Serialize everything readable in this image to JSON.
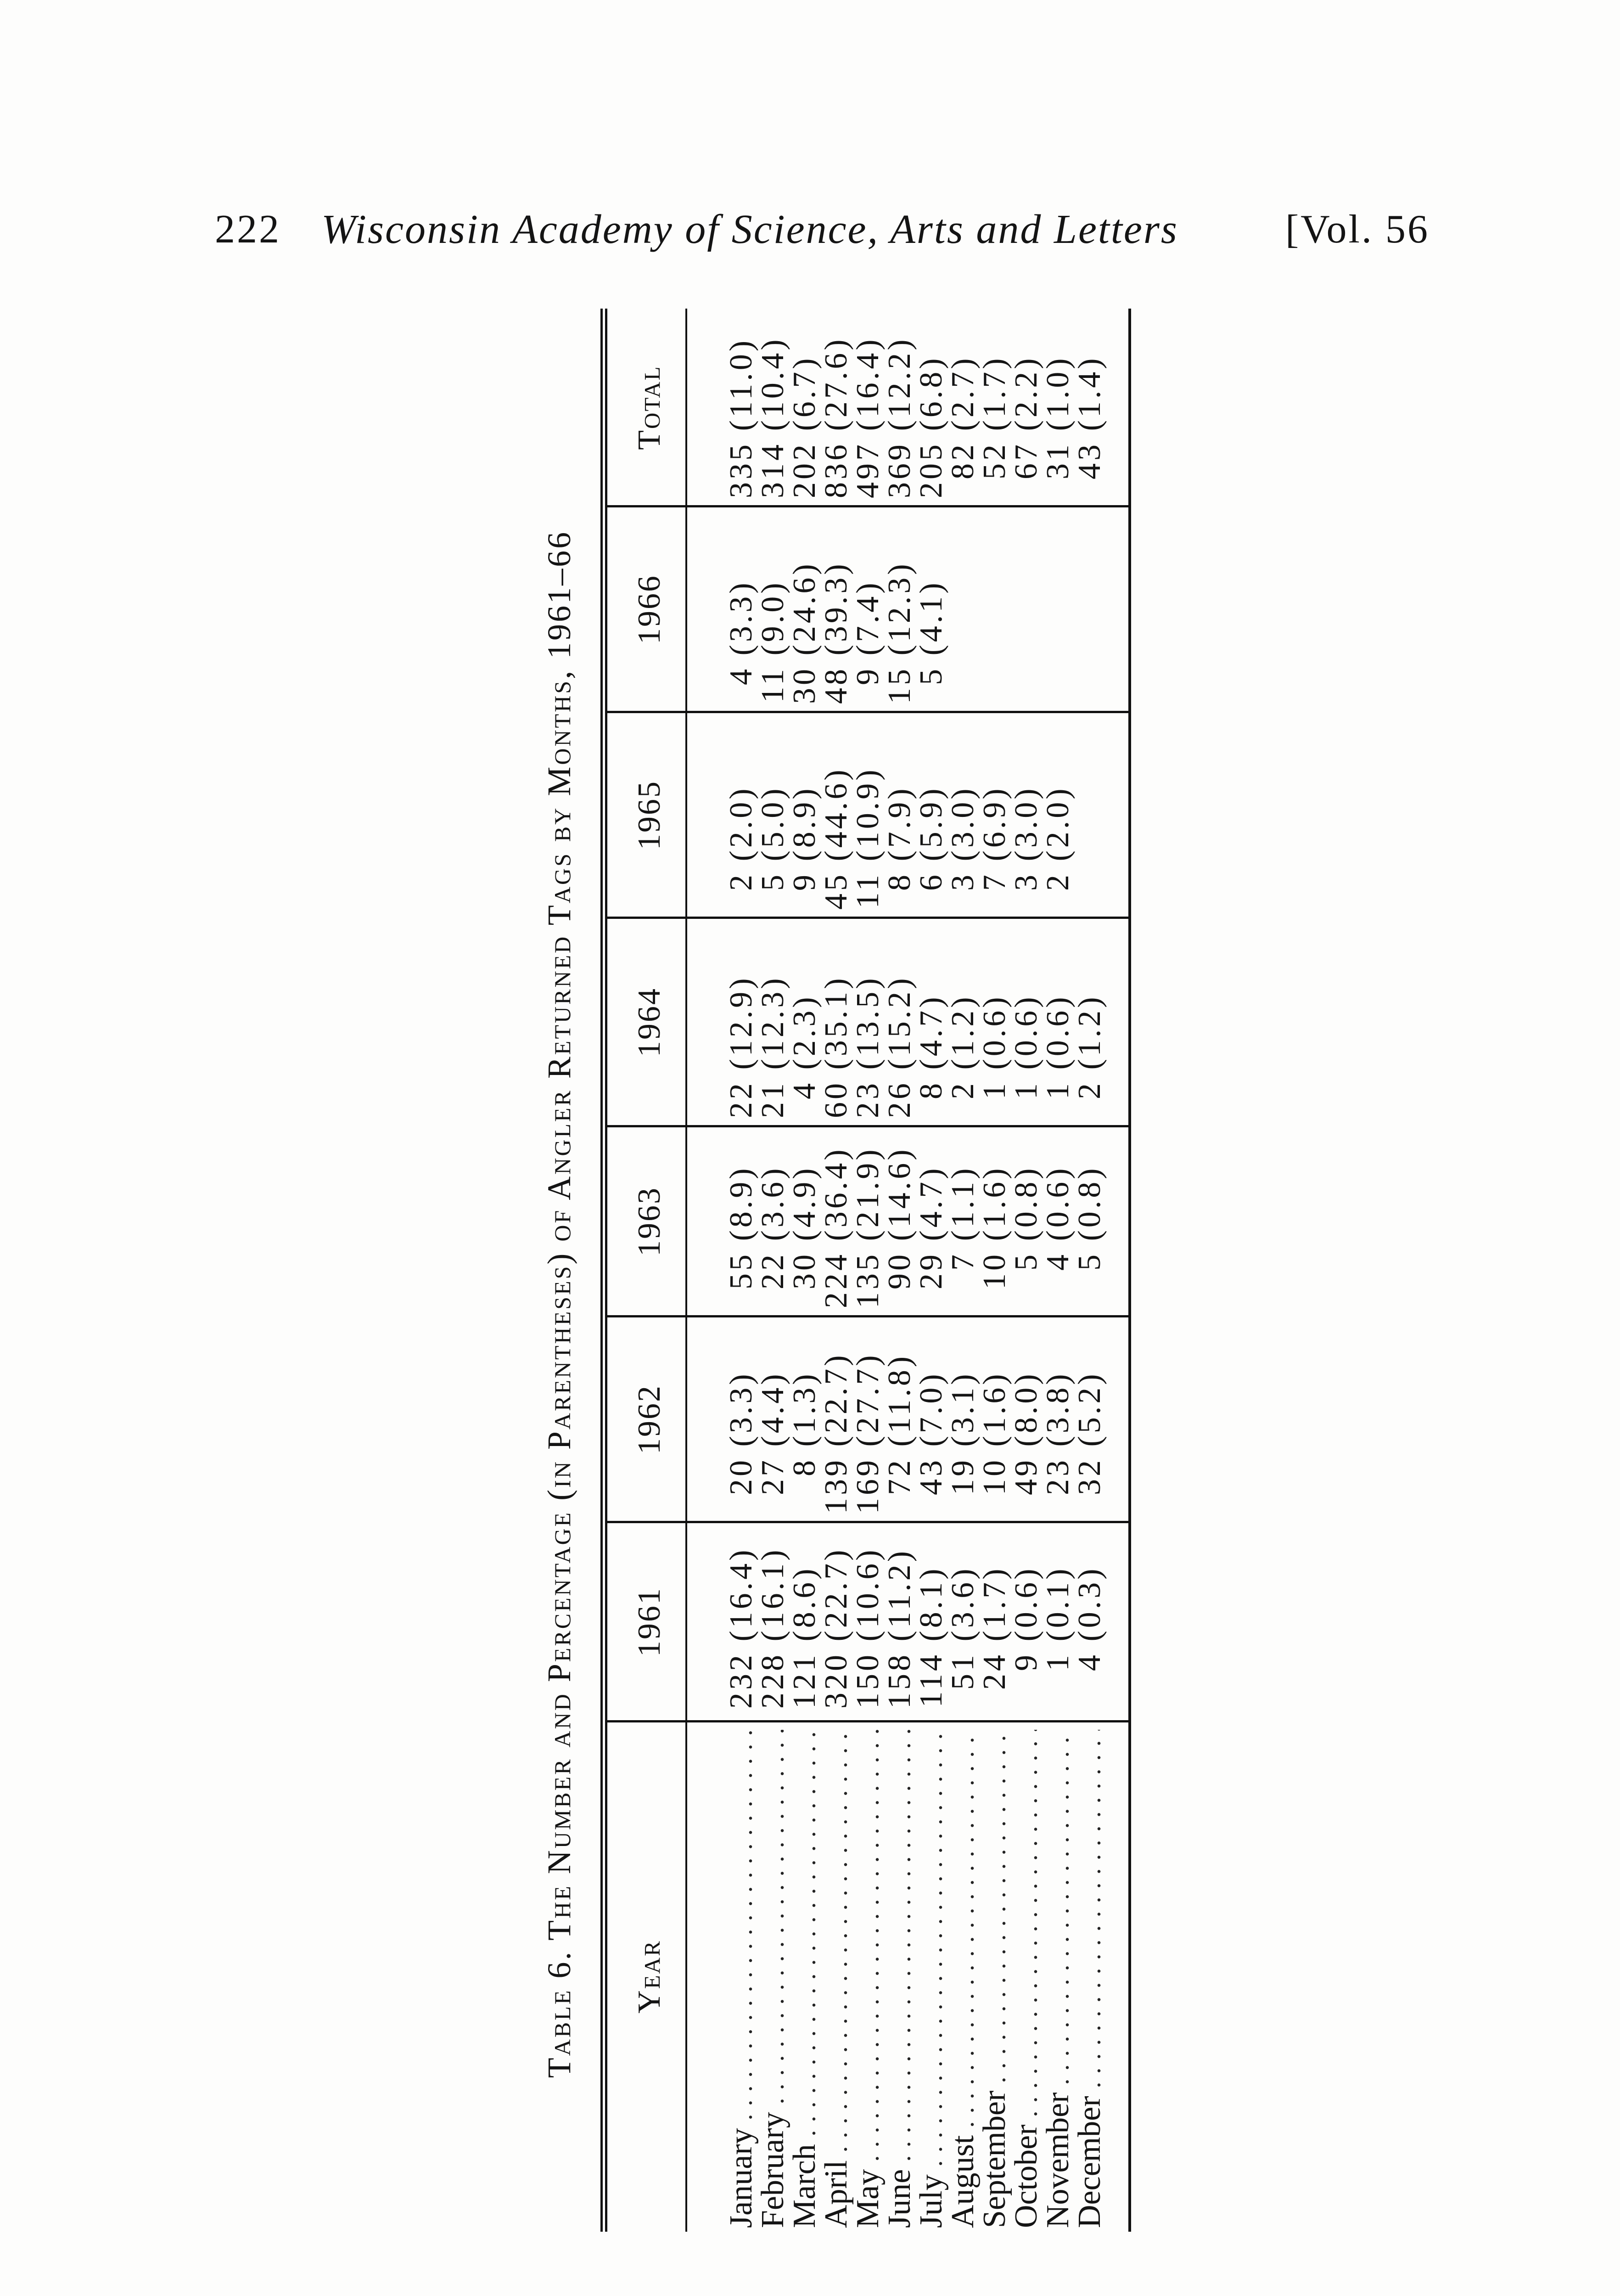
{
  "page_header": {
    "page_number": "222",
    "journal": "Wisconsin Academy of Science, Arts and Letters",
    "volume": "[Vol. 56"
  },
  "table": {
    "title": "Table 6. The Number and Percentage (in Parentheses) of Angler Returned Tags by Months, 1961–66",
    "stub_header": "Year",
    "columns": [
      "1961",
      "1962",
      "1963",
      "1964",
      "1965",
      "1966",
      "Total"
    ],
    "rows": [
      {
        "month": "January",
        "cells": [
          [
            "232",
            "16.4"
          ],
          [
            "20",
            "3.3"
          ],
          [
            "55",
            "8.9"
          ],
          [
            "22",
            "12.9"
          ],
          [
            "2",
            "2.0"
          ],
          [
            "4",
            "3.3"
          ],
          [
            "335",
            "11.0"
          ]
        ]
      },
      {
        "month": "February",
        "cells": [
          [
            "228",
            "16.1"
          ],
          [
            "27",
            "4.4"
          ],
          [
            "22",
            "3.6"
          ],
          [
            "21",
            "12.3"
          ],
          [
            "5",
            "5.0"
          ],
          [
            "11",
            "9.0"
          ],
          [
            "314",
            "10.4"
          ]
        ]
      },
      {
        "month": "March",
        "cells": [
          [
            "121",
            "8.6"
          ],
          [
            "8",
            "1.3"
          ],
          [
            "30",
            "4.9"
          ],
          [
            "4",
            "2.3"
          ],
          [
            "9",
            "8.9"
          ],
          [
            "30",
            "24.6"
          ],
          [
            "202",
            "6.7"
          ]
        ]
      },
      {
        "month": "April",
        "cells": [
          [
            "320",
            "22.7"
          ],
          [
            "139",
            "22.7"
          ],
          [
            "224",
            "36.4"
          ],
          [
            "60",
            "35.1"
          ],
          [
            "45",
            "44.6"
          ],
          [
            "48",
            "39.3"
          ],
          [
            "836",
            "27.6"
          ]
        ]
      },
      {
        "month": "May",
        "cells": [
          [
            "150",
            "10.6"
          ],
          [
            "169",
            "27.7"
          ],
          [
            "135",
            "21.9"
          ],
          [
            "23",
            "13.5"
          ],
          [
            "11",
            "10.9"
          ],
          [
            "9",
            "7.4"
          ],
          [
            "497",
            "16.4"
          ]
        ]
      },
      {
        "month": "June",
        "cells": [
          [
            "158",
            "11.2"
          ],
          [
            "72",
            "11.8"
          ],
          [
            "90",
            "14.6"
          ],
          [
            "26",
            "15.2"
          ],
          [
            "8",
            "7.9"
          ],
          [
            "15",
            "12.3"
          ],
          [
            "369",
            "12.2"
          ]
        ]
      },
      {
        "month": "July",
        "cells": [
          [
            "114",
            "8.1"
          ],
          [
            "43",
            "7.0"
          ],
          [
            "29",
            "4.7"
          ],
          [
            "8",
            "4.7"
          ],
          [
            "6",
            "5.9"
          ],
          [
            "5",
            "4.1"
          ],
          [
            "205",
            "6.8"
          ]
        ]
      },
      {
        "month": "August",
        "cells": [
          [
            "51",
            "3.6"
          ],
          [
            "19",
            "3.1"
          ],
          [
            "7",
            "1.1"
          ],
          [
            "2",
            "1.2"
          ],
          [
            "3",
            "3.0"
          ],
          null,
          [
            "82",
            "2.7"
          ]
        ]
      },
      {
        "month": "September",
        "cells": [
          [
            "24",
            "1.7"
          ],
          [
            "10",
            "1.6"
          ],
          [
            "10",
            "1.6"
          ],
          [
            "1",
            "0.6"
          ],
          [
            "7",
            "6.9"
          ],
          null,
          [
            "52",
            "1.7"
          ]
        ]
      },
      {
        "month": "October",
        "cells": [
          [
            "9",
            "0.6"
          ],
          [
            "49",
            "8.0"
          ],
          [
            "5",
            "0.8"
          ],
          [
            "1",
            "0.6"
          ],
          [
            "3",
            "3.0"
          ],
          null,
          [
            "67",
            "2.2"
          ]
        ]
      },
      {
        "month": "November",
        "cells": [
          [
            "1",
            "0.1"
          ],
          [
            "23",
            "3.8"
          ],
          [
            "4",
            "0.6"
          ],
          [
            "1",
            "0.6"
          ],
          [
            "2",
            "2.0"
          ],
          null,
          [
            "31",
            "1.0"
          ]
        ]
      },
      {
        "month": "December",
        "cells": [
          [
            "4",
            "0.3"
          ],
          [
            "32",
            "5.2"
          ],
          [
            "5",
            "0.8"
          ],
          [
            "2",
            "1.2"
          ],
          null,
          null,
          [
            "43",
            "1.4"
          ]
        ]
      }
    ]
  }
}
